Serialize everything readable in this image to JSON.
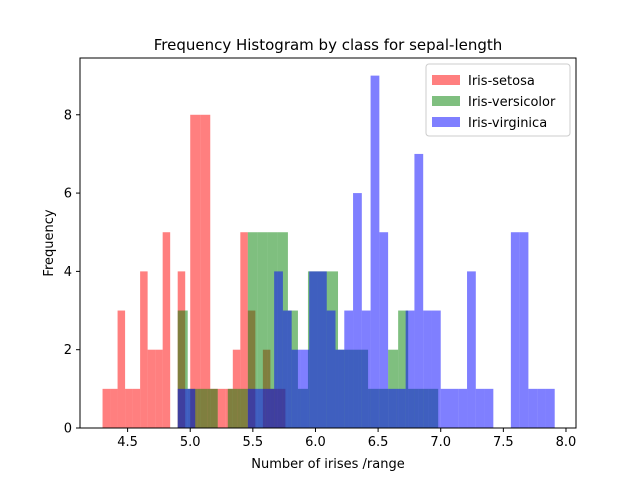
{
  "chart_data": {
    "type": "bar",
    "title": "Frequency Histogram by class for  sepal-length",
    "xlabel": "Number of irises /range",
    "ylabel": "Frequency",
    "xlim": [
      4.12,
      8.08
    ],
    "ylim": [
      0,
      9.45
    ],
    "xticks": [
      4.5,
      5.0,
      5.5,
      6.0,
      6.5,
      7.0,
      7.5,
      8.0
    ],
    "xtick_labels": [
      "4.5",
      "5.0",
      "5.5",
      "6.0",
      "6.5",
      "7.0",
      "7.5",
      "8.0"
    ],
    "yticks": [
      0,
      2,
      4,
      6,
      8
    ],
    "ytick_labels": [
      "0",
      "2",
      "4",
      "6",
      "8"
    ],
    "grid": false,
    "legend_position": "top-right",
    "series": [
      {
        "name": "Iris-setosa",
        "color": "#ff0000",
        "alpha": 0.5,
        "bins": [
          {
            "x0": 4.3,
            "x1": 4.36,
            "count": 1
          },
          {
            "x0": 4.36,
            "x1": 4.42,
            "count": 1
          },
          {
            "x0": 4.42,
            "x1": 4.48,
            "count": 3
          },
          {
            "x0": 4.48,
            "x1": 4.54,
            "count": 1
          },
          {
            "x0": 4.54,
            "x1": 4.6,
            "count": 1
          },
          {
            "x0": 4.6,
            "x1": 4.66,
            "count": 4
          },
          {
            "x0": 4.66,
            "x1": 4.72,
            "count": 2
          },
          {
            "x0": 4.72,
            "x1": 4.78,
            "count": 2
          },
          {
            "x0": 4.78,
            "x1": 4.84,
            "count": 5
          },
          {
            "x0": 4.9,
            "x1": 4.96,
            "count": 4
          },
          {
            "x0": 5.0,
            "x1": 5.08,
            "count": 8
          },
          {
            "x0": 5.08,
            "x1": 5.16,
            "count": 8
          },
          {
            "x0": 5.16,
            "x1": 5.22,
            "count": 1
          },
          {
            "x0": 5.22,
            "x1": 5.28,
            "count": 1
          },
          {
            "x0": 5.28,
            "x1": 5.34,
            "count": 1
          },
          {
            "x0": 5.34,
            "x1": 5.4,
            "count": 2
          },
          {
            "x0": 5.4,
            "x1": 5.46,
            "count": 5
          },
          {
            "x0": 5.46,
            "x1": 5.52,
            "count": 3
          },
          {
            "x0": 5.52,
            "x1": 5.58,
            "count": 0
          },
          {
            "x0": 5.58,
            "x1": 5.64,
            "count": 2
          },
          {
            "x0": 5.64,
            "x1": 5.7,
            "count": 1
          },
          {
            "x0": 5.7,
            "x1": 5.76,
            "count": 1
          }
        ]
      },
      {
        "name": "Iris-versicolor",
        "color": "#008000",
        "alpha": 0.5,
        "bins": [
          {
            "x0": 4.9,
            "x1": 4.98,
            "count": 3
          },
          {
            "x0": 4.98,
            "x1": 5.06,
            "count": 1
          },
          {
            "x0": 5.06,
            "x1": 5.14,
            "count": 1
          },
          {
            "x0": 5.14,
            "x1": 5.22,
            "count": 1
          },
          {
            "x0": 5.3,
            "x1": 5.38,
            "count": 1
          },
          {
            "x0": 5.38,
            "x1": 5.46,
            "count": 1
          },
          {
            "x0": 5.46,
            "x1": 5.54,
            "count": 5
          },
          {
            "x0": 5.54,
            "x1": 5.62,
            "count": 5
          },
          {
            "x0": 5.62,
            "x1": 5.7,
            "count": 5
          },
          {
            "x0": 5.7,
            "x1": 5.78,
            "count": 5
          },
          {
            "x0": 5.78,
            "x1": 5.86,
            "count": 3
          },
          {
            "x0": 5.86,
            "x1": 5.94,
            "count": 1
          },
          {
            "x0": 5.94,
            "x1": 6.02,
            "count": 4
          },
          {
            "x0": 6.02,
            "x1": 6.1,
            "count": 4
          },
          {
            "x0": 6.1,
            "x1": 6.18,
            "count": 4
          },
          {
            "x0": 6.18,
            "x1": 6.26,
            "count": 2
          },
          {
            "x0": 6.26,
            "x1": 6.34,
            "count": 2
          },
          {
            "x0": 6.34,
            "x1": 6.42,
            "count": 2
          },
          {
            "x0": 6.42,
            "x1": 6.5,
            "count": 1
          },
          {
            "x0": 6.5,
            "x1": 6.58,
            "count": 1
          },
          {
            "x0": 6.58,
            "x1": 6.66,
            "count": 2
          },
          {
            "x0": 6.66,
            "x1": 6.74,
            "count": 3
          },
          {
            "x0": 6.74,
            "x1": 6.82,
            "count": 1
          },
          {
            "x0": 6.82,
            "x1": 6.9,
            "count": 1
          },
          {
            "x0": 6.9,
            "x1": 6.98,
            "count": 1
          }
        ]
      },
      {
        "name": "Iris-virginica",
        "color": "#0000ff",
        "alpha": 0.5,
        "bins": [
          {
            "x0": 4.9,
            "x1": 5.04,
            "count": 1
          },
          {
            "x0": 5.04,
            "x1": 5.18,
            "count": 0
          },
          {
            "x0": 5.18,
            "x1": 5.32,
            "count": 0
          },
          {
            "x0": 5.32,
            "x1": 5.46,
            "count": 0
          },
          {
            "x0": 5.46,
            "x1": 5.6,
            "count": 1
          },
          {
            "x0": 5.6,
            "x1": 5.67,
            "count": 1
          },
          {
            "x0": 5.67,
            "x1": 5.74,
            "count": 4
          },
          {
            "x0": 5.74,
            "x1": 5.81,
            "count": 3
          },
          {
            "x0": 5.81,
            "x1": 5.88,
            "count": 2
          },
          {
            "x0": 5.88,
            "x1": 5.95,
            "count": 2
          },
          {
            "x0": 5.95,
            "x1": 6.02,
            "count": 4
          },
          {
            "x0": 6.02,
            "x1": 6.09,
            "count": 4
          },
          {
            "x0": 6.09,
            "x1": 6.16,
            "count": 3
          },
          {
            "x0": 6.16,
            "x1": 6.23,
            "count": 2
          },
          {
            "x0": 6.23,
            "x1": 6.3,
            "count": 3
          },
          {
            "x0": 6.3,
            "x1": 6.37,
            "count": 6
          },
          {
            "x0": 6.37,
            "x1": 6.44,
            "count": 3
          },
          {
            "x0": 6.44,
            "x1": 6.51,
            "count": 9
          },
          {
            "x0": 6.51,
            "x1": 6.58,
            "count": 5
          },
          {
            "x0": 6.58,
            "x1": 6.65,
            "count": 1
          },
          {
            "x0": 6.65,
            "x1": 6.72,
            "count": 1
          },
          {
            "x0": 6.72,
            "x1": 6.79,
            "count": 3
          },
          {
            "x0": 6.79,
            "x1": 6.86,
            "count": 7
          },
          {
            "x0": 6.86,
            "x1": 6.93,
            "count": 3
          },
          {
            "x0": 6.93,
            "x1": 7.0,
            "count": 3
          },
          {
            "x0": 7.0,
            "x1": 7.07,
            "count": 1
          },
          {
            "x0": 7.07,
            "x1": 7.14,
            "count": 1
          },
          {
            "x0": 7.14,
            "x1": 7.21,
            "count": 1
          },
          {
            "x0": 7.21,
            "x1": 7.28,
            "count": 4
          },
          {
            "x0": 7.28,
            "x1": 7.35,
            "count": 1
          },
          {
            "x0": 7.35,
            "x1": 7.42,
            "count": 1
          },
          {
            "x0": 7.42,
            "x1": 7.49,
            "count": 0
          },
          {
            "x0": 7.49,
            "x1": 7.56,
            "count": 0
          },
          {
            "x0": 7.56,
            "x1": 7.63,
            "count": 5
          },
          {
            "x0": 7.63,
            "x1": 7.7,
            "count": 5
          },
          {
            "x0": 7.7,
            "x1": 7.77,
            "count": 1
          },
          {
            "x0": 7.77,
            "x1": 7.84,
            "count": 1
          },
          {
            "x0": 7.84,
            "x1": 7.91,
            "count": 1
          }
        ]
      }
    ]
  }
}
